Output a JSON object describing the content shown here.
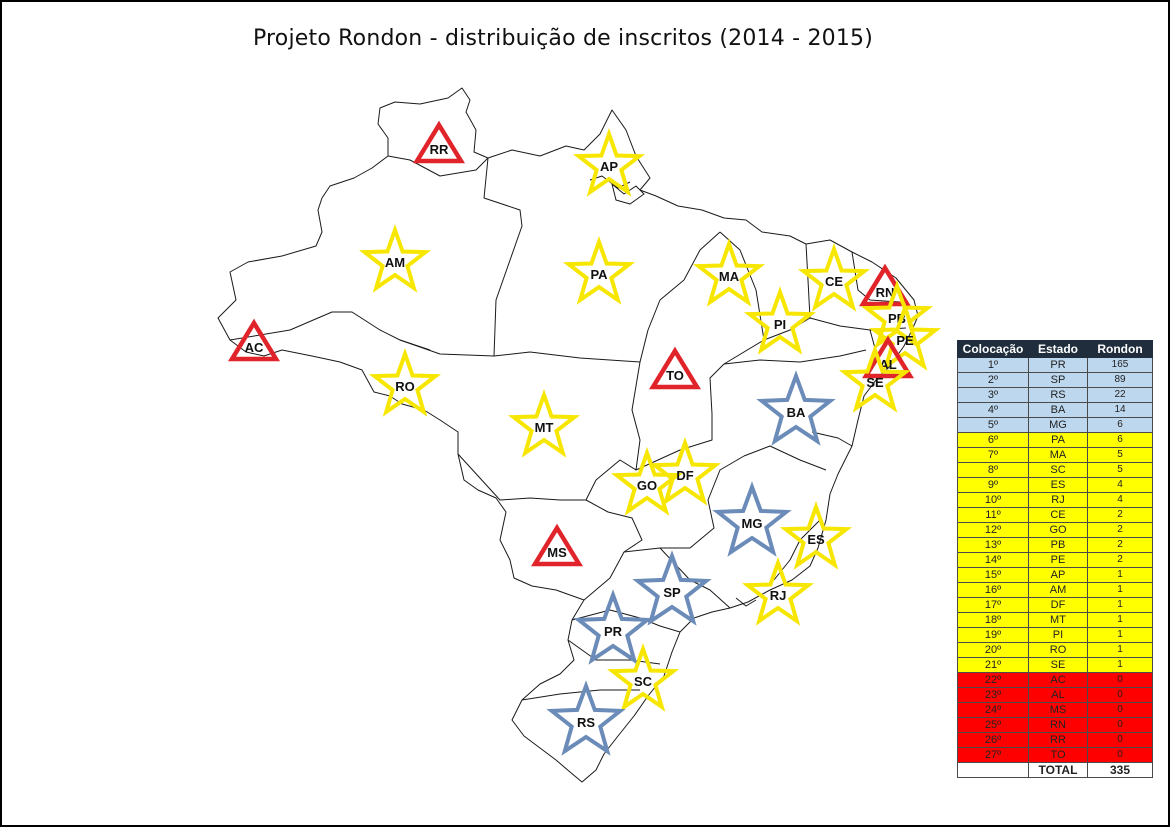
{
  "title": "Projeto Rondon - distribuição de inscritos (2014 - 2015)",
  "colors": {
    "blue": "#6b8bb8",
    "yellow": "#f7e600",
    "red": "#e0242a",
    "row_blue": "#bdd7ee",
    "row_yellow": "#ffff00",
    "row_red": "#ff0000"
  },
  "markers": [
    {
      "uf": "RR",
      "shape": "triangle",
      "color": "red"
    },
    {
      "uf": "AP",
      "shape": "star",
      "color": "yellow"
    },
    {
      "uf": "AM",
      "shape": "star",
      "color": "yellow"
    },
    {
      "uf": "PA",
      "shape": "star",
      "color": "yellow"
    },
    {
      "uf": "MA",
      "shape": "star",
      "color": "yellow"
    },
    {
      "uf": "CE",
      "shape": "star",
      "color": "yellow"
    },
    {
      "uf": "RN",
      "shape": "triangle",
      "color": "red"
    },
    {
      "uf": "PB",
      "shape": "star",
      "color": "yellow"
    },
    {
      "uf": "PE",
      "shape": "star",
      "color": "yellow"
    },
    {
      "uf": "PI",
      "shape": "star",
      "color": "yellow"
    },
    {
      "uf": "AL",
      "shape": "triangle",
      "color": "red"
    },
    {
      "uf": "SE",
      "shape": "star",
      "color": "yellow"
    },
    {
      "uf": "AC",
      "shape": "triangle",
      "color": "red"
    },
    {
      "uf": "RO",
      "shape": "star",
      "color": "yellow"
    },
    {
      "uf": "TO",
      "shape": "triangle",
      "color": "red"
    },
    {
      "uf": "BA",
      "shape": "star",
      "color": "blue"
    },
    {
      "uf": "MT",
      "shape": "star",
      "color": "yellow"
    },
    {
      "uf": "GO",
      "shape": "star",
      "color": "yellow"
    },
    {
      "uf": "DF",
      "shape": "star",
      "color": "yellow"
    },
    {
      "uf": "MG",
      "shape": "star",
      "color": "blue"
    },
    {
      "uf": "ES",
      "shape": "star",
      "color": "yellow"
    },
    {
      "uf": "MS",
      "shape": "triangle",
      "color": "red"
    },
    {
      "uf": "SP",
      "shape": "star",
      "color": "blue"
    },
    {
      "uf": "RJ",
      "shape": "star",
      "color": "yellow"
    },
    {
      "uf": "PR",
      "shape": "star",
      "color": "blue"
    },
    {
      "uf": "SC",
      "shape": "star",
      "color": "yellow"
    },
    {
      "uf": "RS",
      "shape": "star",
      "color": "blue"
    }
  ],
  "table": {
    "headers": [
      "Colocação",
      "Estado",
      "Rondon"
    ],
    "rows": [
      {
        "rank": "1º",
        "uf": "PR",
        "value": "165",
        "band": "blue"
      },
      {
        "rank": "2º",
        "uf": "SP",
        "value": "89",
        "band": "blue"
      },
      {
        "rank": "3º",
        "uf": "RS",
        "value": "22",
        "band": "blue"
      },
      {
        "rank": "4º",
        "uf": "BA",
        "value": "14",
        "band": "blue"
      },
      {
        "rank": "5º",
        "uf": "MG",
        "value": "6",
        "band": "blue"
      },
      {
        "rank": "6º",
        "uf": "PA",
        "value": "6",
        "band": "yellow"
      },
      {
        "rank": "7º",
        "uf": "MA",
        "value": "5",
        "band": "yellow"
      },
      {
        "rank": "8º",
        "uf": "SC",
        "value": "5",
        "band": "yellow"
      },
      {
        "rank": "9º",
        "uf": "ES",
        "value": "4",
        "band": "yellow"
      },
      {
        "rank": "10º",
        "uf": "RJ",
        "value": "4",
        "band": "yellow"
      },
      {
        "rank": "11º",
        "uf": "CE",
        "value": "2",
        "band": "yellow"
      },
      {
        "rank": "12º",
        "uf": "GO",
        "value": "2",
        "band": "yellow"
      },
      {
        "rank": "13º",
        "uf": "PB",
        "value": "2",
        "band": "yellow"
      },
      {
        "rank": "14º",
        "uf": "PE",
        "value": "2",
        "band": "yellow"
      },
      {
        "rank": "15º",
        "uf": "AP",
        "value": "1",
        "band": "yellow"
      },
      {
        "rank": "16º",
        "uf": "AM",
        "value": "1",
        "band": "yellow"
      },
      {
        "rank": "17º",
        "uf": "DF",
        "value": "1",
        "band": "yellow"
      },
      {
        "rank": "18º",
        "uf": "MT",
        "value": "1",
        "band": "yellow"
      },
      {
        "rank": "19º",
        "uf": "PI",
        "value": "1",
        "band": "yellow"
      },
      {
        "rank": "20º",
        "uf": "RO",
        "value": "1",
        "band": "yellow"
      },
      {
        "rank": "21º",
        "uf": "SE",
        "value": "1",
        "band": "yellow"
      },
      {
        "rank": "22º",
        "uf": "AC",
        "value": "0",
        "band": "red"
      },
      {
        "rank": "23º",
        "uf": "AL",
        "value": "0",
        "band": "red"
      },
      {
        "rank": "24º",
        "uf": "MS",
        "value": "0",
        "band": "red"
      },
      {
        "rank": "25º",
        "uf": "RN",
        "value": "0",
        "band": "red"
      },
      {
        "rank": "26º",
        "uf": "RR",
        "value": "0",
        "band": "red"
      },
      {
        "rank": "27º",
        "uf": "TO",
        "value": "0",
        "band": "red"
      }
    ],
    "total_label": "TOTAL",
    "total_value": "335"
  }
}
